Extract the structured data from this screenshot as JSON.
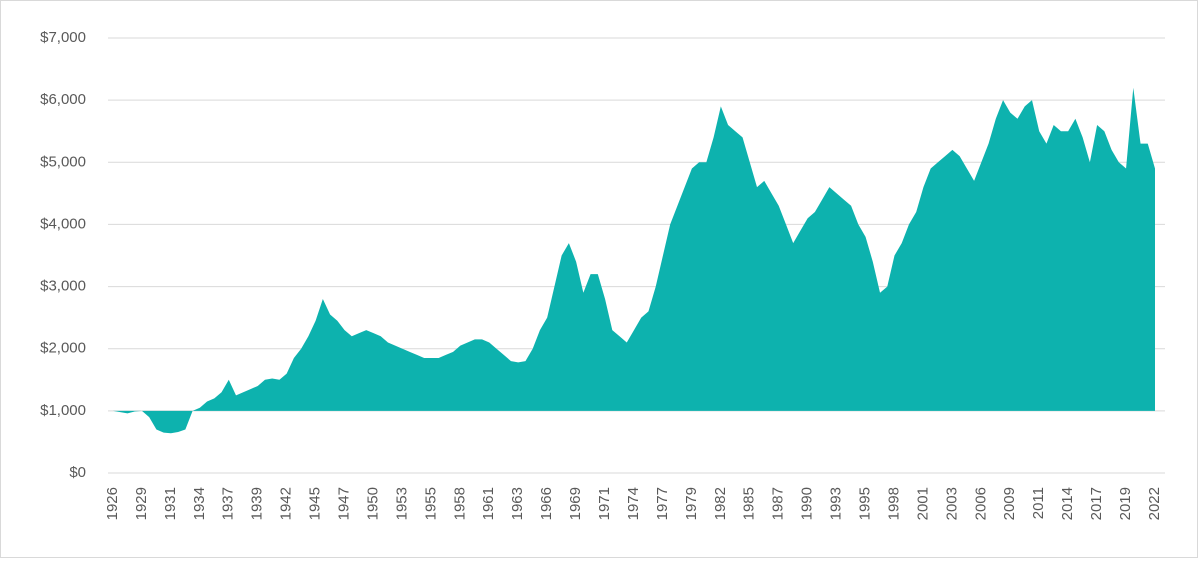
{
  "chart_data": {
    "type": "area",
    "color": "#0db2ae",
    "baseline": 1000,
    "grid": true,
    "ylim": [
      0,
      7000
    ],
    "yticks": [
      {
        "value": 0,
        "label": "$0"
      },
      {
        "value": 1000,
        "label": "$1,000"
      },
      {
        "value": 2000,
        "label": "$2,000"
      },
      {
        "value": 3000,
        "label": "$3,000"
      },
      {
        "value": 4000,
        "label": "$4,000"
      },
      {
        "value": 5000,
        "label": "$5,000"
      },
      {
        "value": 6000,
        "label": "$6,000"
      },
      {
        "value": 7000,
        "label": "$7,000"
      }
    ],
    "categories": [
      "1926",
      null,
      null,
      null,
      "1929",
      null,
      null,
      null,
      "1931",
      null,
      null,
      null,
      "1934",
      null,
      null,
      null,
      "1937",
      null,
      null,
      null,
      "1939",
      null,
      null,
      null,
      "1942",
      null,
      null,
      null,
      "1945",
      null,
      null,
      null,
      "1947",
      null,
      null,
      null,
      "1950",
      null,
      null,
      null,
      "1953",
      null,
      null,
      null,
      "1955",
      null,
      null,
      null,
      "1958",
      null,
      null,
      null,
      "1961",
      null,
      null,
      null,
      "1963",
      null,
      null,
      null,
      "1966",
      null,
      null,
      null,
      "1969",
      null,
      null,
      null,
      "1971",
      null,
      null,
      null,
      "1974",
      null,
      null,
      null,
      "1977",
      null,
      null,
      null,
      "1979",
      null,
      null,
      null,
      "1982",
      null,
      null,
      null,
      "1985",
      null,
      null,
      null,
      "1987",
      null,
      null,
      null,
      "1990",
      null,
      null,
      null,
      "1993",
      null,
      null,
      null,
      "1995",
      null,
      null,
      null,
      "1998",
      null,
      null,
      null,
      "2001",
      null,
      null,
      null,
      "2003",
      null,
      null,
      null,
      "2006",
      null,
      null,
      null,
      "2009",
      null,
      null,
      null,
      "2011",
      null,
      null,
      null,
      "2014",
      null,
      null,
      null,
      "2017",
      null,
      null,
      null,
      "2019",
      null,
      null,
      null,
      "2022"
    ],
    "values": [
      1000,
      980,
      960,
      990,
      1000,
      900,
      700,
      650,
      640,
      660,
      700,
      1000,
      1050,
      1150,
      1200,
      1300,
      1500,
      1250,
      1300,
      1350,
      1400,
      1500,
      1520,
      1500,
      1600,
      1850,
      2000,
      2200,
      2450,
      2800,
      2550,
      2450,
      2300,
      2200,
      2250,
      2300,
      2250,
      2200,
      2100,
      2050,
      2000,
      1950,
      1900,
      1850,
      1850,
      1850,
      1900,
      1950,
      2050,
      2100,
      2150,
      2150,
      2100,
      2000,
      1900,
      1800,
      1780,
      1800,
      2000,
      2300,
      2500,
      3000,
      3500,
      3700,
      3400,
      2900,
      3200,
      3200,
      2800,
      2300,
      2200,
      2100,
      2300,
      2500,
      2600,
      3000,
      3500,
      4000,
      4300,
      4600,
      4900,
      5000,
      5000,
      5400,
      5900,
      5600,
      5500,
      5400,
      5000,
      4600,
      4700,
      4500,
      4300,
      4000,
      3700,
      3900,
      4100,
      4200,
      4400,
      4600,
      4500,
      4400,
      4300,
      4000,
      3800,
      3400,
      2900,
      3000,
      3500,
      3700,
      4000,
      4200,
      4600,
      4900,
      5000,
      5100,
      5200,
      5100,
      4900,
      4700,
      5000,
      5300,
      5700,
      6000,
      5800,
      5700,
      5900,
      6000,
      5500,
      5300,
      5600,
      5500,
      5500,
      5700,
      5400,
      5000,
      5600,
      5500,
      5200,
      5000,
      4900,
      6200,
      5300,
      5300,
      4900
    ]
  }
}
